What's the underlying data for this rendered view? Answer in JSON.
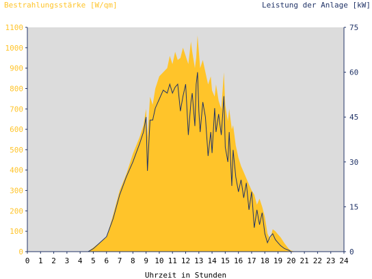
{
  "chart_data": {
    "type": "area",
    "left_axis_title": "Bestrahlungsstärke [W/qm]",
    "right_axis_title": "Leistung der Anlage [kW]",
    "xlabel": "Uhrzeit in Stunden",
    "xlim": [
      0,
      24
    ],
    "x_ticks": [
      0,
      1,
      2,
      3,
      4,
      5,
      6,
      7,
      8,
      9,
      10,
      11,
      12,
      13,
      14,
      15,
      16,
      17,
      18,
      19,
      20,
      21,
      22,
      23,
      24
    ],
    "ylim_left": [
      0,
      1100
    ],
    "y_ticks_left": [
      0,
      100,
      200,
      300,
      400,
      500,
      600,
      700,
      800,
      900,
      1000,
      1100
    ],
    "ylim_right": [
      0,
      75
    ],
    "y_ticks_right": [
      0,
      15,
      30,
      45,
      60,
      75
    ],
    "grid": false,
    "colors": {
      "irradiance_fill": "#ffc42a",
      "power_line": "#1f3266",
      "plot_background": "#dcdcdc",
      "left_axis_text": "#ffc42a",
      "right_axis_text": "#1f3266"
    },
    "series": [
      {
        "axis": "left",
        "style": "area",
        "x": [
          0,
          4.6,
          5.0,
          5.5,
          6.0,
          6.5,
          7.0,
          7.5,
          8.0,
          8.5,
          8.8,
          9.0,
          9.1,
          9.3,
          9.5,
          9.7,
          10.0,
          10.3,
          10.6,
          10.8,
          11.0,
          11.2,
          11.4,
          11.6,
          11.8,
          12.0,
          12.2,
          12.4,
          12.5,
          12.7,
          12.8,
          12.9,
          13.0,
          13.1,
          13.3,
          13.5,
          13.7,
          13.9,
          14.0,
          14.2,
          14.3,
          14.5,
          14.7,
          14.9,
          15.0,
          15.2,
          15.3,
          15.5,
          15.6,
          15.8,
          16.0,
          16.2,
          16.4,
          16.6,
          16.8,
          17.0,
          17.2,
          17.4,
          17.6,
          17.8,
          18.0,
          18.2,
          18.4,
          18.6,
          18.8,
          19.0,
          19.2,
          19.5,
          19.8,
          20.0,
          20.3,
          24
        ],
        "values": [
          0,
          0,
          20,
          45,
          70,
          180,
          300,
          380,
          480,
          560,
          620,
          700,
          560,
          760,
          720,
          800,
          860,
          880,
          900,
          960,
          920,
          980,
          940,
          950,
          1000,
          960,
          920,
          1030,
          980,
          900,
          950,
          1060,
          980,
          900,
          940,
          880,
          820,
          860,
          790,
          760,
          820,
          740,
          700,
          880,
          720,
          640,
          700,
          600,
          620,
          520,
          460,
          420,
          390,
          360,
          330,
          300,
          280,
          230,
          260,
          220,
          170,
          90,
          60,
          110,
          100,
          85,
          70,
          40,
          15,
          5,
          0,
          0
        ]
      },
      {
        "axis": "right",
        "style": "line",
        "x": [
          0,
          4.6,
          5.0,
          5.5,
          6.0,
          6.5,
          7.0,
          7.5,
          8.0,
          8.5,
          8.8,
          9.0,
          9.1,
          9.3,
          9.5,
          9.7,
          10.0,
          10.3,
          10.6,
          10.8,
          11.0,
          11.2,
          11.4,
          11.6,
          11.8,
          12.0,
          12.2,
          12.4,
          12.5,
          12.7,
          12.8,
          12.9,
          13.0,
          13.1,
          13.3,
          13.5,
          13.7,
          13.9,
          14.0,
          14.2,
          14.3,
          14.5,
          14.7,
          14.9,
          15.0,
          15.2,
          15.3,
          15.5,
          15.6,
          15.8,
          16.0,
          16.2,
          16.4,
          16.6,
          16.8,
          17.0,
          17.2,
          17.4,
          17.6,
          17.8,
          18.0,
          18.2,
          18.4,
          18.6,
          18.8,
          19.0,
          19.2,
          19.5,
          19.8,
          20.0,
          20.3,
          24
        ],
        "values": [
          0,
          0,
          1,
          3,
          5,
          11,
          19,
          25,
          30,
          36,
          40,
          45,
          27,
          44,
          44,
          48,
          51,
          54,
          53,
          56,
          53,
          55,
          56,
          47,
          52,
          56,
          39,
          50,
          53,
          42,
          56,
          60,
          47,
          40,
          50,
          45,
          32,
          40,
          33,
          48,
          40,
          46,
          39,
          52,
          35,
          30,
          40,
          22,
          34,
          25,
          20,
          24,
          18,
          23,
          14,
          20,
          8,
          14,
          9,
          13,
          6,
          3,
          5,
          6,
          4,
          3,
          2,
          1,
          0.5,
          0,
          0,
          0
        ]
      }
    ]
  }
}
